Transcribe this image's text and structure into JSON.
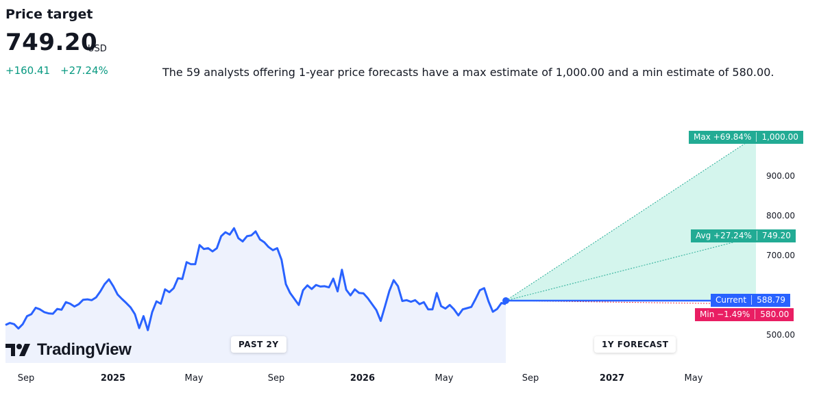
{
  "header": {
    "title": "Price target",
    "price": "749.20",
    "currency": "USD",
    "change_abs": "+160.41",
    "change_pct": "+27.24%",
    "summary": "The 59 analysts offering 1-year price forecasts have a max estimate of 1,000.00 and a min estimate of 580.00."
  },
  "brand": {
    "logo_text": "TradingView"
  },
  "sections": {
    "past_label": "PAST 2Y",
    "forecast_label": "1Y FORECAST"
  },
  "colors": {
    "line": "#2962ff",
    "positive": "#089981",
    "negative": "#f23645",
    "forecast_fill": "#d4f5ed",
    "history_fill": "#eef2fd",
    "text": "#131722"
  },
  "chart_data": {
    "type": "line",
    "x_ticks": [
      {
        "label": "Sep",
        "year": false
      },
      {
        "label": "2025",
        "year": true
      },
      {
        "label": "May",
        "year": false
      },
      {
        "label": "Sep",
        "year": false
      },
      {
        "label": "2026",
        "year": true
      },
      {
        "label": "May",
        "year": false
      },
      {
        "label": "Sep",
        "year": false
      },
      {
        "label": "2027",
        "year": true
      },
      {
        "label": "May",
        "year": false
      }
    ],
    "y_ticks": [
      "900.00",
      "800.00",
      "700.00",
      "500.00"
    ],
    "ylim": [
      467,
      1005
    ],
    "history": [
      528,
      533,
      530,
      519,
      530,
      550,
      555,
      571,
      567,
      560,
      557,
      556,
      568,
      566,
      585,
      581,
      574,
      580,
      591,
      592,
      590,
      597,
      612,
      630,
      642,
      625,
      604,
      593,
      583,
      572,
      555,
      520,
      550,
      515,
      560,
      587,
      581,
      617,
      610,
      620,
      645,
      643,
      685,
      680,
      680,
      728,
      718,
      720,
      712,
      720,
      750,
      760,
      754,
      770,
      745,
      737,
      750,
      752,
      762,
      742,
      735,
      723,
      715,
      720,
      691,
      630,
      608,
      593,
      578,
      615,
      627,
      618,
      628,
      624,
      625,
      622,
      644,
      612,
      666,
      616,
      602,
      617,
      608,
      607,
      595,
      580,
      565,
      538,
      575,
      613,
      640,
      625,
      588,
      590,
      586,
      590,
      580,
      585,
      567,
      567,
      608,
      575,
      569,
      578,
      567,
      552,
      567,
      570,
      573,
      593,
      615,
      620,
      587,
      561,
      568,
      583,
      580
    ],
    "current": 588.79,
    "forecast": {
      "max": {
        "label": "Max +69.84%",
        "value": "1,000.00",
        "y": 1000
      },
      "avg": {
        "label": "Avg +27.24%",
        "value": "749.20",
        "y": 749.2
      },
      "current": {
        "label": "Current",
        "value": "588.79",
        "y": 588.79
      },
      "min": {
        "label": "Min −1.49%",
        "value": "580.00",
        "y": 580
      }
    }
  }
}
